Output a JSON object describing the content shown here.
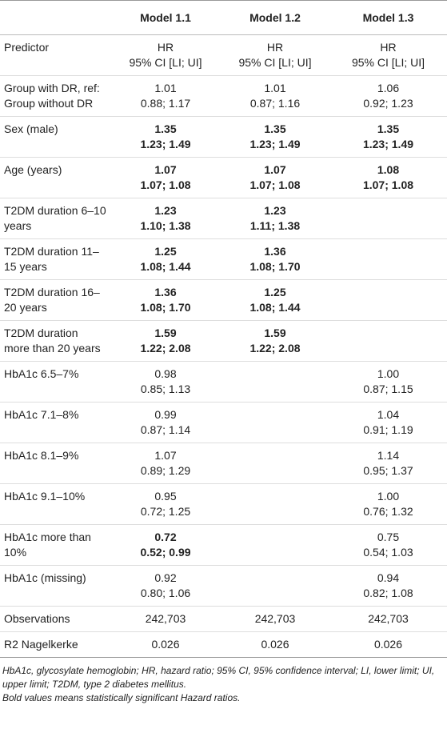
{
  "table": {
    "columns": [
      "Model 1.1",
      "Model 1.2",
      "Model 1.3"
    ],
    "rows": [
      {
        "label": "Predictor",
        "cells": [
          {
            "hr": "HR",
            "ci": "95% CI [LI; UI]",
            "bold": false
          },
          {
            "hr": "HR",
            "ci": "95% CI [LI; UI]",
            "bold": false
          },
          {
            "hr": "HR",
            "ci": "95% CI [LI; UI]",
            "bold": false
          }
        ]
      },
      {
        "label": "Group with DR, ref: Group without DR",
        "cells": [
          {
            "hr": "1.01",
            "ci": "0.88; 1.17",
            "bold": false
          },
          {
            "hr": "1.01",
            "ci": "0.87; 1.16",
            "bold": false
          },
          {
            "hr": "1.06",
            "ci": "0.92; 1.23",
            "bold": false
          }
        ]
      },
      {
        "label": "Sex (male)",
        "cells": [
          {
            "hr": "1.35",
            "ci": "1.23; 1.49",
            "bold": true
          },
          {
            "hr": "1.35",
            "ci": "1.23; 1.49",
            "bold": true
          },
          {
            "hr": "1.35",
            "ci": "1.23; 1.49",
            "bold": true
          }
        ]
      },
      {
        "label": "Age (years)",
        "cells": [
          {
            "hr": "1.07",
            "ci": "1.07; 1.08",
            "bold": true
          },
          {
            "hr": "1.07",
            "ci": "1.07; 1.08",
            "bold": true
          },
          {
            "hr": "1.08",
            "ci": "1.07; 1.08",
            "bold": true
          }
        ]
      },
      {
        "label": "T2DM duration 6–10 years",
        "cells": [
          {
            "hr": "1.23",
            "ci": "1.10; 1.38",
            "bold": true
          },
          {
            "hr": "1.23",
            "ci": "1.11; 1.38",
            "bold": true
          },
          null
        ]
      },
      {
        "label": "T2DM duration 11–15 years",
        "cells": [
          {
            "hr": "1.25",
            "ci": "1.08; 1.44",
            "bold": true
          },
          {
            "hr": "1.36",
            "ci": "1.08; 1.70",
            "bold": true
          },
          null
        ]
      },
      {
        "label": "T2DM duration 16–20 years",
        "cells": [
          {
            "hr": "1.36",
            "ci": "1.08; 1.70",
            "bold": true
          },
          {
            "hr": "1.25",
            "ci": "1.08; 1.44",
            "bold": true
          },
          null
        ]
      },
      {
        "label": "T2DM duration more than 20 years",
        "cells": [
          {
            "hr": "1.59",
            "ci": "1.22; 2.08",
            "bold": true
          },
          {
            "hr": "1.59",
            "ci": "1.22; 2.08",
            "bold": true
          },
          null
        ]
      },
      {
        "label": "HbA1c 6.5–7%",
        "cells": [
          {
            "hr": "0.98",
            "ci": "0.85; 1.13",
            "bold": false
          },
          null,
          {
            "hr": "1.00",
            "ci": "0.87; 1.15",
            "bold": false
          }
        ]
      },
      {
        "label": "HbA1c 7.1–8%",
        "cells": [
          {
            "hr": "0.99",
            "ci": "0.87; 1.14",
            "bold": false
          },
          null,
          {
            "hr": "1.04",
            "ci": "0.91; 1.19",
            "bold": false
          }
        ]
      },
      {
        "label": "HbA1c 8.1–9%",
        "cells": [
          {
            "hr": "1.07",
            "ci": "0.89; 1.29",
            "bold": false
          },
          null,
          {
            "hr": "1.14",
            "ci": "0.95; 1.37",
            "bold": false
          }
        ]
      },
      {
        "label": "HbA1c 9.1–10%",
        "cells": [
          {
            "hr": "0.95",
            "ci": "0.72; 1.25",
            "bold": false
          },
          null,
          {
            "hr": "1.00",
            "ci": "0.76; 1.32",
            "bold": false
          }
        ]
      },
      {
        "label": "HbA1c more than 10%",
        "cells": [
          {
            "hr": "0.72",
            "ci": "0.52; 0.99",
            "bold": true
          },
          null,
          {
            "hr": "0.75",
            "ci": "0.54; 1.03",
            "bold": false
          }
        ]
      },
      {
        "label": "HbA1c (missing)",
        "cells": [
          {
            "hr": "0.92",
            "ci": "0.80; 1.06",
            "bold": false
          },
          null,
          {
            "hr": "0.94",
            "ci": "0.82; 1.08",
            "bold": false
          }
        ]
      },
      {
        "label": "Observations",
        "cells": [
          {
            "hr": "242,703",
            "bold": false
          },
          {
            "hr": "242,703",
            "bold": false
          },
          {
            "hr": "242,703",
            "bold": false
          }
        ]
      },
      {
        "label": "R2 Nagelkerke",
        "cells": [
          {
            "hr": "0.026",
            "bold": false
          },
          {
            "hr": "0.026",
            "bold": false
          },
          {
            "hr": "0.026",
            "bold": false
          }
        ]
      }
    ],
    "notes": [
      "HbA1c, glycosylate hemoglobin; HR, hazard ratio; 95% CI, 95% confidence interval; LI, lower limit; UI, upper limit; T2DM, type 2 diabetes mellitus.",
      "Bold values means statistically significant Hazard ratios."
    ]
  }
}
